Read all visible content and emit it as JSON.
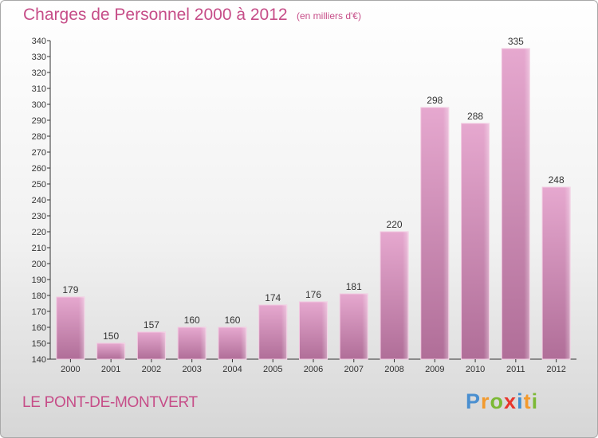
{
  "chart_data": {
    "type": "bar",
    "title": "Charges de Personnel 2000 à 2012",
    "subtitle": "(en milliers d'€)",
    "categories": [
      "2000",
      "2001",
      "2002",
      "2003",
      "2004",
      "2005",
      "2006",
      "2007",
      "2008",
      "2009",
      "2010",
      "2011",
      "2012"
    ],
    "values": [
      179,
      150,
      157,
      160,
      160,
      174,
      176,
      181,
      220,
      298,
      288,
      335,
      248
    ],
    "ylim": [
      140,
      340
    ],
    "yticks": [
      140,
      150,
      160,
      170,
      180,
      190,
      200,
      210,
      220,
      230,
      240,
      250,
      260,
      270,
      280,
      290,
      300,
      310,
      320,
      330,
      340
    ],
    "grid": false,
    "bar_color_top": "#e6a8cf",
    "bar_color_bottom": "#b06e98",
    "xlabel": "",
    "ylabel": ""
  },
  "commune": "LE PONT-DE-MONTVERT",
  "logo": {
    "letters": [
      "P",
      "r",
      "o",
      "x",
      "i",
      "t",
      "i"
    ],
    "colors": [
      "#4a8fd0",
      "#f29a2e",
      "#7cb935",
      "#e8362c",
      "#3f8ed0",
      "#f29a2e",
      "#7cb935"
    ]
  },
  "colors": {
    "title": "#c64d88",
    "axis": "#333333"
  }
}
